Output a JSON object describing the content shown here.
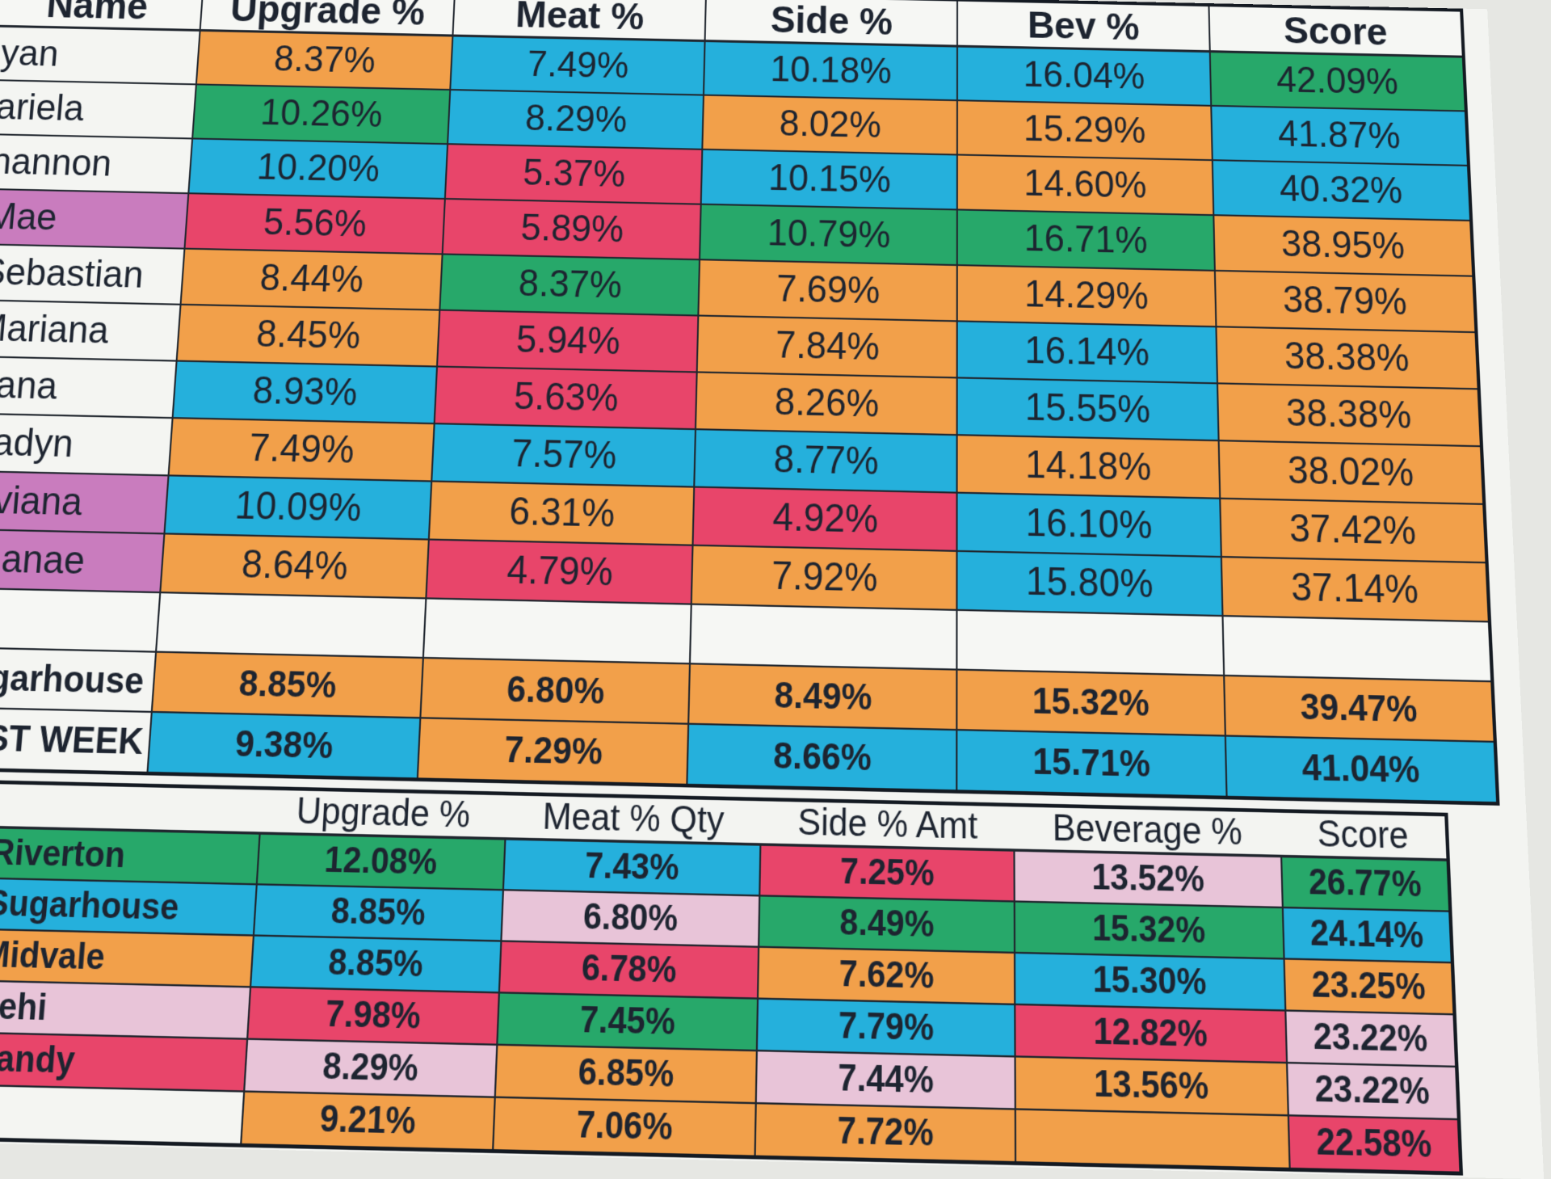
{
  "main_table": {
    "columns": [
      "Name",
      "Upgrade %",
      "Meat %",
      "Side %",
      "Bev %",
      "Score"
    ],
    "rows": [
      {
        "name": "yan",
        "name_color": "",
        "cells": [
          {
            "v": "8.37%",
            "c": "orange"
          },
          {
            "v": "7.49%",
            "c": "blue"
          },
          {
            "v": "10.18%",
            "c": "blue"
          },
          {
            "v": "16.04%",
            "c": "blue"
          },
          {
            "v": "42.09%",
            "c": "green"
          }
        ]
      },
      {
        "name": "ariela",
        "name_color": "",
        "cells": [
          {
            "v": "10.26%",
            "c": "green"
          },
          {
            "v": "8.29%",
            "c": "blue"
          },
          {
            "v": "8.02%",
            "c": "orange"
          },
          {
            "v": "15.29%",
            "c": "orange"
          },
          {
            "v": "41.87%",
            "c": "blue"
          }
        ]
      },
      {
        "name": "hannon",
        "name_color": "",
        "cells": [
          {
            "v": "10.20%",
            "c": "blue"
          },
          {
            "v": "5.37%",
            "c": "red"
          },
          {
            "v": "10.15%",
            "c": "blue"
          },
          {
            "v": "14.60%",
            "c": "orange"
          },
          {
            "v": "40.32%",
            "c": "blue"
          }
        ]
      },
      {
        "name": "Mae",
        "name_color": "purple",
        "cells": [
          {
            "v": "5.56%",
            "c": "red"
          },
          {
            "v": "5.89%",
            "c": "red"
          },
          {
            "v": "10.79%",
            "c": "green"
          },
          {
            "v": "16.71%",
            "c": "green"
          },
          {
            "v": "38.95%",
            "c": "orange"
          }
        ]
      },
      {
        "name": "Sebastian",
        "name_color": "",
        "cells": [
          {
            "v": "8.44%",
            "c": "orange"
          },
          {
            "v": "8.37%",
            "c": "green"
          },
          {
            "v": "7.69%",
            "c": "orange"
          },
          {
            "v": "14.29%",
            "c": "orange"
          },
          {
            "v": "38.79%",
            "c": "orange"
          }
        ]
      },
      {
        "name": "Mariana",
        "name_color": "",
        "cells": [
          {
            "v": "8.45%",
            "c": "orange"
          },
          {
            "v": "5.94%",
            "c": "red"
          },
          {
            "v": "7.84%",
            "c": "orange"
          },
          {
            "v": "16.14%",
            "c": "blue"
          },
          {
            "v": "38.38%",
            "c": "orange"
          }
        ]
      },
      {
        "name": "Sana",
        "name_color": "",
        "cells": [
          {
            "v": "8.93%",
            "c": "blue"
          },
          {
            "v": "5.63%",
            "c": "red"
          },
          {
            "v": "8.26%",
            "c": "orange"
          },
          {
            "v": "15.55%",
            "c": "blue"
          },
          {
            "v": "38.38%",
            "c": "orange"
          }
        ]
      },
      {
        "name": "Hadyn",
        "name_color": "",
        "cells": [
          {
            "v": "7.49%",
            "c": "orange"
          },
          {
            "v": "7.57%",
            "c": "blue"
          },
          {
            "v": "8.77%",
            "c": "blue"
          },
          {
            "v": "14.18%",
            "c": "orange"
          },
          {
            "v": "38.02%",
            "c": "orange"
          }
        ]
      },
      {
        "name": "Viviana",
        "name_color": "purple",
        "cells": [
          {
            "v": "10.09%",
            "c": "blue"
          },
          {
            "v": "6.31%",
            "c": "orange"
          },
          {
            "v": "4.92%",
            "c": "red"
          },
          {
            "v": "16.10%",
            "c": "blue"
          },
          {
            "v": "37.42%",
            "c": "orange"
          }
        ]
      },
      {
        "name": "Shanae",
        "name_color": "purple",
        "cells": [
          {
            "v": "8.64%",
            "c": "orange"
          },
          {
            "v": "4.79%",
            "c": "red"
          },
          {
            "v": "7.92%",
            "c": "orange"
          },
          {
            "v": "15.80%",
            "c": "blue"
          },
          {
            "v": "37.14%",
            "c": "orange"
          }
        ]
      }
    ],
    "summary_rows": [
      {
        "name": "Sugarhouse",
        "cells": [
          {
            "v": "8.85%",
            "c": "orange"
          },
          {
            "v": "6.80%",
            "c": "orange"
          },
          {
            "v": "8.49%",
            "c": "orange"
          },
          {
            "v": "15.32%",
            "c": "orange"
          },
          {
            "v": "39.47%",
            "c": "orange"
          }
        ]
      },
      {
        "name": "LAST WEEK",
        "cells": [
          {
            "v": "9.38%",
            "c": "blue"
          },
          {
            "v": "7.29%",
            "c": "orange"
          },
          {
            "v": "8.66%",
            "c": "blue"
          },
          {
            "v": "15.71%",
            "c": "blue"
          },
          {
            "v": "41.04%",
            "c": "blue"
          }
        ]
      }
    ]
  },
  "store_table": {
    "columns": [
      "",
      "Upgrade %",
      "Meat % Qty",
      "Side % Amt",
      "Beverage %",
      "Score"
    ],
    "rows": [
      {
        "name": "Riverton",
        "name_color": "green",
        "cells": [
          {
            "v": "12.08%",
            "c": "green"
          },
          {
            "v": "7.43%",
            "c": "blue"
          },
          {
            "v": "7.25%",
            "c": "red"
          },
          {
            "v": "13.52%",
            "c": "pink"
          },
          {
            "v": "26.77%",
            "c": "green"
          }
        ]
      },
      {
        "name": "Sugarhouse",
        "name_color": "blue",
        "cells": [
          {
            "v": "8.85%",
            "c": "blue"
          },
          {
            "v": "6.80%",
            "c": "pink"
          },
          {
            "v": "8.49%",
            "c": "green"
          },
          {
            "v": "15.32%",
            "c": "green"
          },
          {
            "v": "24.14%",
            "c": "blue"
          }
        ]
      },
      {
        "name": "Midvale",
        "name_color": "orange",
        "cells": [
          {
            "v": "8.85%",
            "c": "blue"
          },
          {
            "v": "6.78%",
            "c": "red"
          },
          {
            "v": "7.62%",
            "c": "orange"
          },
          {
            "v": "15.30%",
            "c": "blue"
          },
          {
            "v": "23.25%",
            "c": "orange"
          }
        ]
      },
      {
        "name": "Lehi",
        "name_color": "pink",
        "cells": [
          {
            "v": "7.98%",
            "c": "red"
          },
          {
            "v": "7.45%",
            "c": "green"
          },
          {
            "v": "7.79%",
            "c": "blue"
          },
          {
            "v": "12.82%",
            "c": "red"
          },
          {
            "v": "23.22%",
            "c": "pink"
          }
        ]
      },
      {
        "name": "Sandy",
        "name_color": "red",
        "cells": [
          {
            "v": "8.29%",
            "c": "pink"
          },
          {
            "v": "6.85%",
            "c": "orange"
          },
          {
            "v": "7.44%",
            "c": "pink"
          },
          {
            "v": "13.56%",
            "c": "orange"
          },
          {
            "v": "23.22%",
            "c": "pink"
          }
        ]
      },
      {
        "name": "",
        "name_color": "",
        "cells": [
          {
            "v": "9.21%",
            "c": "orange"
          },
          {
            "v": "7.06%",
            "c": "orange"
          },
          {
            "v": "7.72%",
            "c": "orange"
          },
          {
            "v": "",
            "c": "orange"
          },
          {
            "v": "22.58%",
            "c": "red"
          }
        ]
      }
    ]
  }
}
